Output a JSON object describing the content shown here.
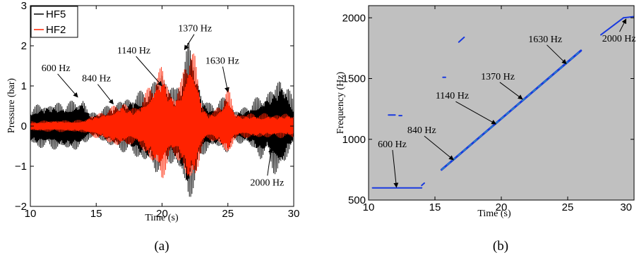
{
  "chart_data": [
    {
      "type": "line",
      "caption": "(a)",
      "xlabel": "Time (s)",
      "ylabel": "Pressure (bar)",
      "xlim": [
        10,
        30
      ],
      "ylim": [
        -2,
        3
      ],
      "xticks": [
        "10",
        "15",
        "20",
        "25",
        "30"
      ],
      "yticks": [
        "−2",
        "−1",
        "0",
        "1",
        "2",
        "3"
      ],
      "legend": {
        "placement": "top-left"
      },
      "series": [
        {
          "name": "HF5",
          "color": "#000000",
          "envelope": {
            "x": [
              10,
              10.5,
              12,
              13.5,
              14,
              14.5,
              15,
              15.5,
              16,
              16.5,
              17,
              17.5,
              18,
              18.5,
              19,
              19.5,
              20,
              20.5,
              21,
              21.5,
              22,
              22.5,
              23,
              23.5,
              24,
              24.5,
              25,
              25.5,
              26,
              26.5,
              27,
              27.5,
              28,
              28.5,
              29,
              29.5,
              30
            ],
            "upper": [
              0.45,
              0.55,
              0.6,
              0.65,
              0.72,
              0.35,
              0.38,
              0.45,
              0.55,
              0.6,
              0.7,
              0.75,
              0.85,
              0.9,
              1.0,
              1.2,
              1.5,
              1.2,
              0.9,
              1.4,
              2.2,
              1.8,
              0.8,
              0.6,
              0.6,
              0.7,
              0.8,
              0.4,
              0.45,
              0.55,
              0.7,
              0.75,
              0.9,
              1.0,
              1.3,
              1.1,
              0.6
            ],
            "lower": [
              -0.45,
              -0.55,
              -0.6,
              -0.62,
              -0.55,
              -0.3,
              -0.32,
              -0.4,
              -0.5,
              -0.6,
              -0.65,
              -0.7,
              -0.8,
              -0.9,
              -1.0,
              -1.2,
              -1.0,
              -0.95,
              -1.0,
              -1.3,
              -2.0,
              -1.5,
              -0.8,
              -0.6,
              -0.55,
              -0.6,
              -0.7,
              -0.4,
              -0.45,
              -0.5,
              -0.6,
              -0.9,
              -0.7,
              -1.2,
              -1.3,
              -0.8,
              -0.4
            ]
          }
        },
        {
          "name": "HF2",
          "color": "#ff2200",
          "envelope": {
            "x": [
              10,
              11,
              12,
              13,
              14,
              14.5,
              15,
              15.5,
              16,
              16.5,
              17,
              17.5,
              18,
              18.5,
              19,
              19.5,
              20,
              20.5,
              21,
              21.5,
              22,
              22.5,
              23,
              23.5,
              24,
              24.5,
              25,
              25.5,
              26,
              26.5,
              27,
              27.5,
              28,
              28.5,
              29,
              29.5,
              30
            ],
            "upper": [
              0.12,
              0.14,
              0.15,
              0.15,
              0.16,
              0.25,
              0.3,
              0.38,
              0.45,
              0.55,
              0.65,
              0.5,
              0.5,
              0.7,
              1.0,
              1.3,
              1.6,
              1.0,
              0.8,
              1.2,
              2.2,
              1.8,
              0.6,
              0.35,
              0.4,
              0.6,
              1.05,
              0.4,
              0.3,
              0.32,
              0.35,
              0.3,
              0.35,
              0.3,
              0.3,
              0.35,
              0.3
            ],
            "lower": [
              -0.12,
              -0.14,
              -0.15,
              -0.15,
              -0.16,
              -0.25,
              -0.3,
              -0.35,
              -0.45,
              -0.5,
              -0.55,
              -0.45,
              -0.5,
              -0.6,
              -0.85,
              -1.1,
              -1.4,
              -0.9,
              -0.8,
              -1.0,
              -1.6,
              -1.4,
              -0.6,
              -0.35,
              -0.4,
              -0.55,
              -0.8,
              -0.35,
              -0.3,
              -0.3,
              -0.32,
              -0.3,
              -0.3,
              -0.3,
              -0.3,
              -0.3,
              -0.3
            ]
          }
        }
      ],
      "annotations": [
        {
          "text": "600 Hz",
          "point": [
            13.6,
            0.72
          ]
        },
        {
          "text": "840 Hz",
          "point": [
            16.3,
            0.55
          ]
        },
        {
          "text": "1140 Hz",
          "point": [
            20.0,
            1.0
          ]
        },
        {
          "text": "1370 Hz",
          "point": [
            21.7,
            1.9
          ]
        },
        {
          "text": "1630 Hz",
          "point": [
            25.0,
            0.85
          ]
        },
        {
          "text": "2000 Hz",
          "point": [
            28.3,
            -0.55
          ]
        }
      ]
    },
    {
      "type": "heatmap",
      "caption": "(b)",
      "xlabel": "Time (s)",
      "ylabel": "Frequency (Hz)",
      "xlim": [
        10,
        30
      ],
      "ylim": [
        500,
        2100
      ],
      "xticks": [
        "10",
        "15",
        "20",
        "25",
        "30"
      ],
      "yticks": [
        "500",
        "1000",
        "1500",
        "2000"
      ],
      "background": "#c0c0c0",
      "ridge_color": "#1a3adf",
      "ridge_highlight": "#30d0a0",
      "ridges": [
        {
          "x": [
            10.3,
            14.0
          ],
          "y": [
            600,
            600
          ]
        },
        {
          "x": [
            14.0,
            14.2
          ],
          "y": [
            620,
            640
          ]
        },
        {
          "x": [
            15.5,
            26.0
          ],
          "y": [
            750,
            1730
          ]
        },
        {
          "x": [
            27.5,
            29.2
          ],
          "y": [
            1860,
            2000
          ]
        },
        {
          "x": [
            29.2,
            30.0
          ],
          "y": [
            2000,
            2010
          ]
        },
        {
          "x": [
            16.8,
            17.2
          ],
          "y": [
            1800,
            1840
          ]
        },
        {
          "x": [
            15.6,
            15.8
          ],
          "y": [
            1510,
            1510
          ]
        },
        {
          "x": [
            11.5,
            12.0
          ],
          "y": [
            1200,
            1200
          ]
        },
        {
          "x": [
            12.3,
            12.5
          ],
          "y": [
            1195,
            1195
          ]
        }
      ],
      "annotations": [
        {
          "text": "600 Hz",
          "point": [
            12.1,
            605
          ]
        },
        {
          "text": "840 Hz",
          "point": [
            16.4,
            830
          ]
        },
        {
          "text": "1140 Hz",
          "point": [
            19.6,
            1125
          ]
        },
        {
          "text": "1370 Hz",
          "point": [
            21.6,
            1330
          ]
        },
        {
          "text": "1630 Hz",
          "point": [
            24.9,
            1620
          ]
        },
        {
          "text": "2000 Hz",
          "point": [
            29.4,
            1990
          ]
        }
      ]
    }
  ]
}
